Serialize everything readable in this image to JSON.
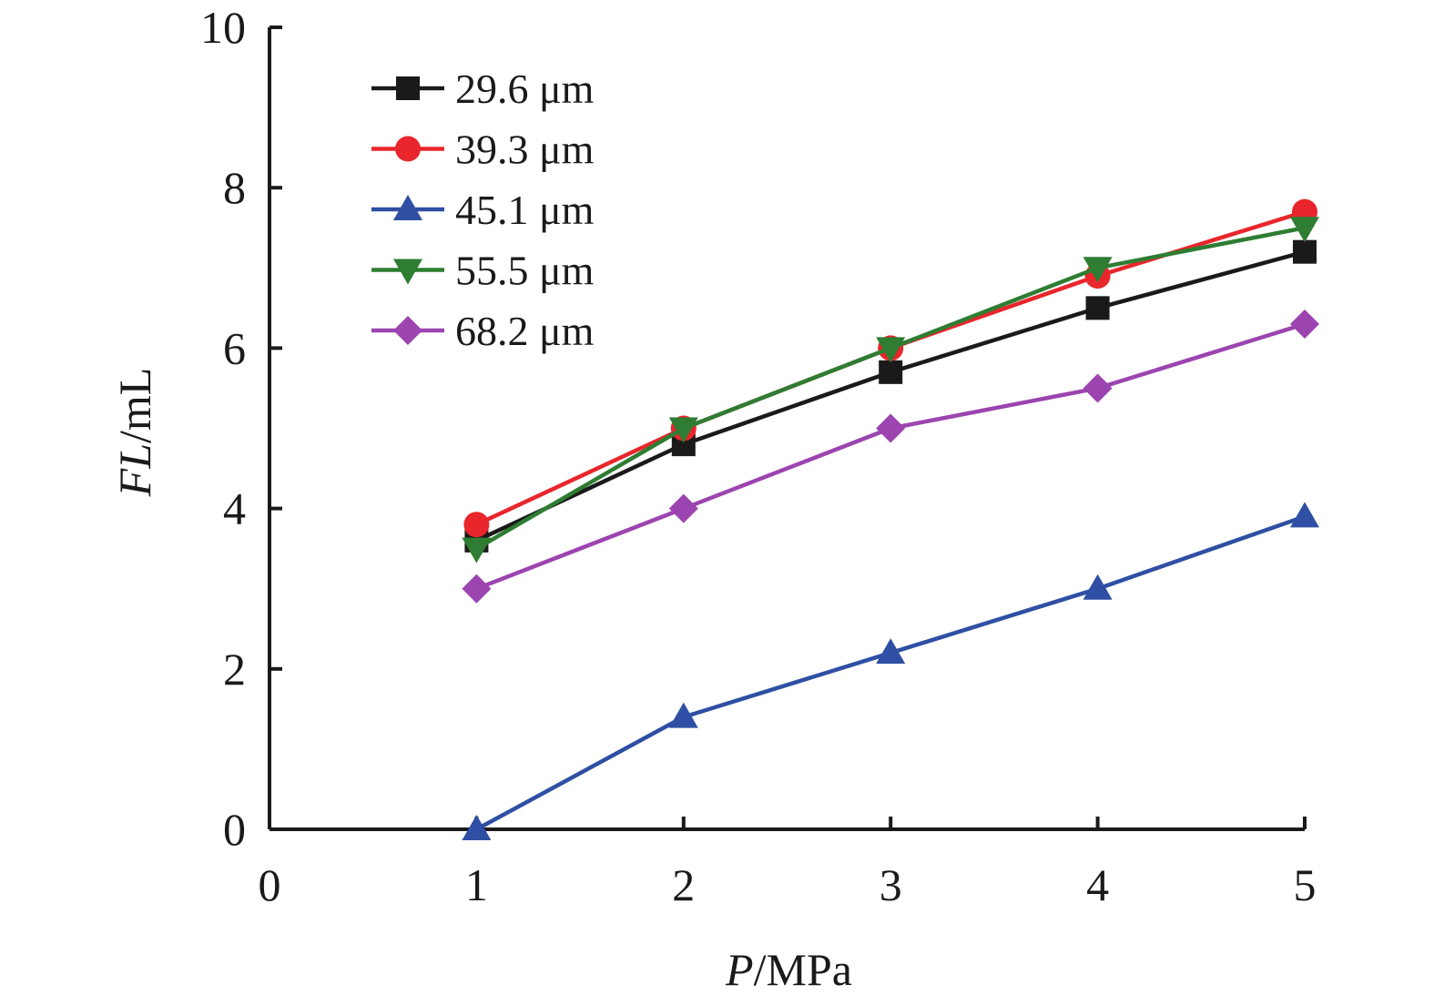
{
  "chart_data": {
    "type": "line",
    "xlabel": {
      "var": "P",
      "unit": "/MPa"
    },
    "ylabel": {
      "var": "FL",
      "unit": "/mL"
    },
    "xlim": [
      0,
      5
    ],
    "ylim": [
      0,
      10
    ],
    "xticks": [
      "0",
      "1",
      "2",
      "3",
      "4",
      "5"
    ],
    "yticks": [
      "0",
      "2",
      "4",
      "6",
      "8",
      "10"
    ],
    "grid": false,
    "legend_position": "top-left",
    "x": [
      1,
      2,
      3,
      4,
      5
    ],
    "series": [
      {
        "name": "29.6 μm",
        "color": "#1a1a1a",
        "marker": "square",
        "values": [
          3.6,
          4.8,
          5.7,
          6.5,
          7.2
        ]
      },
      {
        "name": "39.3 μm",
        "color": "#e8262b",
        "marker": "circle",
        "values": [
          3.8,
          5.0,
          6.0,
          6.9,
          7.7
        ]
      },
      {
        "name": "45.1 μm",
        "color": "#2e4fa3",
        "marker": "triangle-up",
        "values": [
          0.0,
          1.4,
          2.2,
          3.0,
          3.9
        ]
      },
      {
        "name": "55.5 μm",
        "color": "#2e7d32",
        "marker": "triangle-down",
        "values": [
          3.5,
          5.0,
          6.0,
          7.0,
          7.5
        ]
      },
      {
        "name": "68.2 μm",
        "color": "#9c44b0",
        "marker": "diamond",
        "values": [
          3.0,
          4.0,
          5.0,
          5.5,
          6.3
        ]
      }
    ]
  }
}
